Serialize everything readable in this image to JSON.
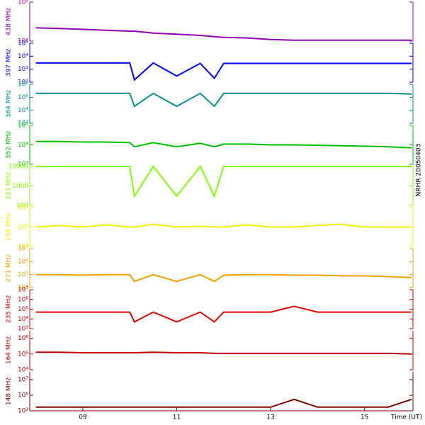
{
  "chart_data": [
    {
      "type": "line",
      "annotation": "NRHR 20050403",
      "log_scale": true,
      "xlim": [
        7.87,
        16.03
      ],
      "x": [
        8,
        8.5,
        9,
        9.5,
        10,
        10.1,
        10.5,
        11,
        11.5,
        11.8,
        12,
        12.5,
        13,
        13.5,
        14,
        14.5,
        15,
        15.5,
        16
      ],
      "ylim": [
        10000,
        100000
      ],
      "yticks": [
        {
          "value": 10000,
          "label": "10⁴"
        },
        {
          "value": 100000,
          "label": "10⁵"
        }
      ],
      "series": [
        {
          "name": "438 MHz",
          "color": "#9000b0",
          "values": [
            22000,
            21000,
            20000,
            19000,
            18000,
            18000,
            16000,
            15000,
            14000,
            13000,
            12500,
            12000,
            11000,
            10500,
            10500,
            10500,
            10500,
            10500,
            10500
          ]
        }
      ]
    },
    {
      "type": "line",
      "log_scale": true,
      "xlim": [
        7.87,
        16.03
      ],
      "x": [
        8,
        8.5,
        9,
        9.5,
        10,
        10.1,
        10.5,
        11,
        11.5,
        11.8,
        12,
        12.5,
        13,
        13.5,
        14,
        14.5,
        15,
        15.5,
        16
      ],
      "ylim": [
        100,
        100000
      ],
      "yticks": [
        {
          "value": 100,
          "label": "10²"
        },
        {
          "value": 1000,
          "label": "10³"
        },
        {
          "value": 10000,
          "label": "10⁴"
        },
        {
          "value": 100000,
          "label": "10⁵"
        }
      ],
      "series": [
        {
          "name": "397 MHz",
          "color": "#0000ff",
          "values": [
            3000,
            3000,
            3000,
            3000,
            3000,
            150,
            3000,
            300,
            2800,
            200,
            2800,
            2800,
            2800,
            2800,
            2800,
            2800,
            2800,
            2800,
            2800
          ]
        }
      ]
    },
    {
      "type": "line",
      "log_scale": true,
      "xlim": [
        7.87,
        16.03
      ],
      "x": [
        8,
        8.5,
        9,
        9.5,
        10,
        10.1,
        10.5,
        11,
        11.5,
        11.8,
        12,
        12.5,
        13,
        13.5,
        14,
        14.5,
        15,
        15.5,
        16
      ],
      "ylim": [
        1000,
        1000000
      ],
      "yticks": [
        {
          "value": 1000,
          "label": "10³"
        },
        {
          "value": 10000,
          "label": "10⁴"
        },
        {
          "value": 100000,
          "label": "10⁵"
        },
        {
          "value": 1000000,
          "label": "10⁶"
        }
      ],
      "series": [
        {
          "name": "364 MHz",
          "color": "#009090",
          "values": [
            200000,
            200000,
            200000,
            200000,
            200000,
            20000,
            200000,
            20000,
            200000,
            20000,
            200000,
            200000,
            200000,
            200000,
            200000,
            200000,
            200000,
            200000,
            180000
          ]
        }
      ]
    },
    {
      "type": "line",
      "log_scale": true,
      "xlim": [
        7.87,
        16.03
      ],
      "x": [
        8,
        8.5,
        9,
        9.5,
        10,
        10.1,
        10.5,
        11,
        11.5,
        11.8,
        12,
        12.5,
        13,
        13.5,
        14,
        14.5,
        15,
        15.5,
        16
      ],
      "ylim": [
        1000,
        100000
      ],
      "yticks": [
        {
          "value": 1000,
          "label": "10³"
        },
        {
          "value": 10000,
          "label": "10⁴"
        },
        {
          "value": 100000,
          "label": "10⁵"
        }
      ],
      "series": [
        {
          "name": "352 MHz",
          "color": "#00c000",
          "values": [
            15000,
            15000,
            14000,
            14000,
            13000,
            8000,
            13000,
            8000,
            12000,
            8000,
            11000,
            11000,
            10000,
            10000,
            9500,
            9000,
            8500,
            8000,
            7000
          ]
        }
      ]
    },
    {
      "type": "line",
      "log_scale": true,
      "xlim": [
        7.87,
        16.03
      ],
      "x": [
        8,
        8.5,
        9,
        9.5,
        10,
        10.1,
        10.5,
        11,
        11.5,
        11.8,
        12,
        12.5,
        13,
        13.5,
        14,
        14.5,
        15,
        15.5,
        16
      ],
      "ylim": [
        100,
        10000
      ],
      "yticks": [
        100,
        1000,
        10000
      ],
      "series": [
        {
          "name": "333 MHz",
          "color": "#80ff00",
          "values": [
            10000,
            10000,
            10000,
            10000,
            10000,
            300,
            10000,
            300,
            10000,
            300,
            10000,
            10000,
            10000,
            10000,
            10000,
            10000,
            10000,
            10000,
            10000
          ]
        }
      ]
    },
    {
      "type": "line",
      "log_scale": true,
      "xlim": [
        7.87,
        16.03
      ],
      "x": [
        8,
        8.5,
        9,
        9.5,
        10,
        10.1,
        10.5,
        11,
        11.5,
        11.8,
        12,
        12.5,
        13,
        13.5,
        14,
        14.5,
        15,
        15.5,
        16
      ],
      "ylim": [
        1000,
        100000
      ],
      "yticks": [
        {
          "value": 1000,
          "label": "10³"
        },
        {
          "value": 10000,
          "label": "10⁴"
        },
        {
          "value": 100000,
          "label": "10⁵"
        }
      ],
      "series": [
        {
          "name": "298 MHz",
          "color": "#f0f000",
          "values": [
            10000,
            12000,
            10000,
            13000,
            10000,
            10000,
            14000,
            10000,
            11000,
            10000,
            10000,
            13000,
            10000,
            10000,
            12000,
            14000,
            10000,
            10000,
            10000
          ]
        }
      ]
    },
    {
      "type": "line",
      "log_scale": true,
      "xlim": [
        7.87,
        16.03
      ],
      "x": [
        8,
        8.5,
        9,
        9.5,
        10,
        10.1,
        10.5,
        11,
        11.5,
        11.8,
        12,
        12.5,
        13,
        13.5,
        14,
        14.5,
        15,
        15.5,
        16
      ],
      "ylim": [
        10000,
        10000000
      ],
      "yticks": [
        {
          "value": 10000,
          "label": "10⁴"
        },
        {
          "value": 100000,
          "label": "10⁵"
        },
        {
          "value": 1000000,
          "label": "10⁶"
        },
        {
          "value": 10000000,
          "label": "10⁷"
        }
      ],
      "series": [
        {
          "name": "271 MHz",
          "color": "#f0a000",
          "values": [
            100000,
            100000,
            90000,
            100000,
            100000,
            30000,
            100000,
            30000,
            100000,
            30000,
            90000,
            100000,
            100000,
            90000,
            90000,
            80000,
            80000,
            70000,
            60000
          ]
        }
      ]
    },
    {
      "type": "line",
      "log_scale": true,
      "xlim": [
        7.87,
        16.03
      ],
      "x": [
        8,
        8.5,
        9,
        9.5,
        10,
        10.1,
        10.5,
        11,
        11.5,
        11.8,
        12,
        12.5,
        13,
        13.5,
        14,
        14.5,
        15,
        15.5,
        16
      ],
      "ylim": [
        1000,
        10000000
      ],
      "yticks": [
        {
          "value": 1000,
          "label": "10³"
        },
        {
          "value": 10000,
          "label": "10⁴"
        },
        {
          "value": 100000,
          "label": "10⁵"
        },
        {
          "value": 1000000,
          "label": "10⁶"
        },
        {
          "value": 10000000,
          "label": "10⁷"
        }
      ],
      "series": [
        {
          "name": "235 MHz",
          "color": "#e00000",
          "values": [
            50000,
            50000,
            50000,
            50000,
            50000,
            5000,
            50000,
            5000,
            50000,
            5000,
            50000,
            50000,
            50000,
            200000,
            50000,
            50000,
            50000,
            50000,
            50000
          ]
        }
      ]
    },
    {
      "type": "line",
      "log_scale": true,
      "xlim": [
        7.87,
        16.03
      ],
      "x": [
        8,
        8.5,
        9,
        9.5,
        10,
        10.1,
        10.5,
        11,
        11.5,
        11.8,
        12,
        12.5,
        13,
        13.5,
        14,
        14.5,
        15,
        15.5,
        16
      ],
      "ylim": [
        10000,
        3000000
      ],
      "yticks": [
        {
          "value": 10000,
          "label": "10⁴"
        },
        {
          "value": 100000,
          "label": "10⁵"
        },
        {
          "value": 1000000,
          "label": "10⁶"
        }
      ],
      "series": [
        {
          "name": "164 MHz",
          "color": "#c00000",
          "values": [
            130000,
            130000,
            120000,
            120000,
            120000,
            120000,
            130000,
            120000,
            120000,
            110000,
            110000,
            110000,
            110000,
            110000,
            110000,
            110000,
            110000,
            110000,
            100000
          ]
        }
      ]
    },
    {
      "type": "line",
      "log_scale": true,
      "xlim": [
        7.87,
        16.03
      ],
      "xlabel": "Time (UT)",
      "xticks": [
        {
          "value": 9,
          "label": "09"
        },
        {
          "value": 11,
          "label": "11"
        },
        {
          "value": 13,
          "label": "13"
        },
        {
          "value": 15,
          "label": "15"
        }
      ],
      "x": [
        8,
        8.5,
        9,
        9.5,
        10,
        10.1,
        10.5,
        11,
        11.5,
        11.8,
        12,
        12.5,
        13,
        13.5,
        14,
        14.5,
        15,
        15.5,
        16
      ],
      "ylim": [
        1000,
        100000000
      ],
      "yticks": [
        {
          "value": 1000,
          "label": "10³"
        },
        {
          "value": 100000,
          "label": "10⁵"
        },
        {
          "value": 10000000,
          "label": "10⁷"
        }
      ],
      "series": [
        {
          "name": "148 MHz",
          "color": "#800000",
          "values": [
            3000,
            3000,
            3000,
            3000,
            3000,
            3000,
            3000,
            3000,
            3000,
            3000,
            3000,
            3000,
            3000,
            30000,
            3000,
            3000,
            3000,
            3000,
            30000
          ]
        }
      ]
    }
  ]
}
